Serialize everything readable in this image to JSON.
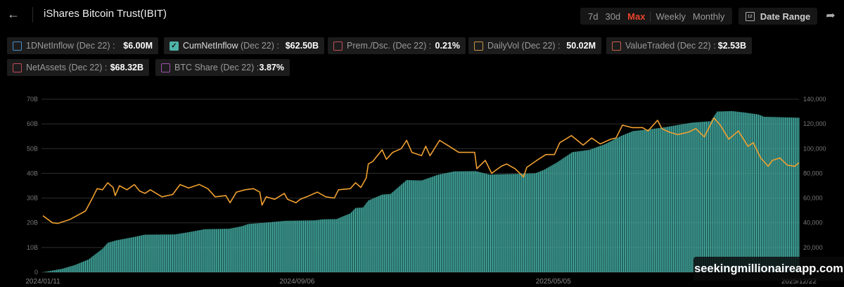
{
  "header": {
    "back_icon": "arrow-left-icon",
    "title": "iShares Bitcoin Trust(IBIT)",
    "ranges": [
      {
        "label": "7d",
        "active": false
      },
      {
        "label": "30d",
        "active": false
      },
      {
        "label": "Max",
        "active": true
      },
      {
        "label": "Weekly",
        "active": false
      },
      {
        "label": "Monthly",
        "active": false
      }
    ],
    "date_range_label": "Date Range",
    "date_range_icon": "calendar-icon",
    "calendar_day": "12",
    "share_icon": "share-icon",
    "accent": "#e8452c"
  },
  "metrics": [
    {
      "label": "1DNetInflow",
      "date": "(Dec 22) :",
      "value": "$6.00M",
      "color": "#4a8fc8",
      "checked": false
    },
    {
      "label": "CumNetInflow",
      "date": "(Dec 22) :",
      "value": "$62.50B",
      "color": "#4fb3a9",
      "checked": true
    },
    {
      "label": "Prem./Dsc.",
      "date": "(Dec 22) :",
      "value": "0.21%",
      "color": "#c0505a",
      "checked": false
    },
    {
      "label": "DailyVol",
      "date": "(Dec 22) :",
      "value": "50.02M",
      "color": "#c8924a",
      "checked": false
    },
    {
      "label": "ValueTraded",
      "date": "(Dec 22) :",
      "value": "$2.53B",
      "color": "#c8604a",
      "checked": false
    },
    {
      "label": "NetAssets",
      "date": "(Dec 22) :",
      "value": "$68.32B",
      "color": "#c04a5a",
      "checked": false
    },
    {
      "label": "BTC Share",
      "date": "(Dec 22) :",
      "value": "3.87%",
      "color": "#a050b0",
      "checked": false
    }
  ],
  "watermark": "seekingmillionaireapp.com",
  "chart_data": {
    "type": "bar+line",
    "grid": true,
    "x_ticks": [
      "2024/01/11",
      "2024/09/06",
      "2025/05/05",
      "2025/12/22"
    ],
    "x_range": [
      "2024-01-11",
      "2025-12-22"
    ],
    "left_axis": {
      "range": [
        0,
        70
      ],
      "ticks": [
        "0",
        "10B",
        "20B",
        "30B",
        "40B",
        "50B",
        "60B",
        "70B"
      ],
      "unit": "B"
    },
    "right_axis": {
      "range": [
        0,
        140000
      ],
      "ticks": [
        "",
        "20,000",
        "40,000",
        "60,000",
        "80,000",
        "100,000",
        "120,000",
        "140,000"
      ]
    },
    "series": [
      {
        "name": "CumNetInflow",
        "type": "bar",
        "axis": "left",
        "color": "#45b0a6",
        "points": [
          [
            "2024-01-11",
            0
          ],
          [
            "2024-01-29",
            1.4
          ],
          [
            "2024-02-10",
            2.9
          ],
          [
            "2024-02-23",
            5.2
          ],
          [
            "2024-03-07",
            9.5
          ],
          [
            "2024-03-12",
            11.9
          ],
          [
            "2024-03-20",
            12.9
          ],
          [
            "2024-04-06",
            14.3
          ],
          [
            "2024-04-16",
            15.2
          ],
          [
            "2024-05-14",
            15.3
          ],
          [
            "2024-05-27",
            16.2
          ],
          [
            "2024-06-11",
            17.4
          ],
          [
            "2024-07-04",
            17.6
          ],
          [
            "2024-07-16",
            18.6
          ],
          [
            "2024-07-22",
            19.5
          ],
          [
            "2024-08-11",
            20.2
          ],
          [
            "2024-08-26",
            20.8
          ],
          [
            "2024-09-23",
            21.0
          ],
          [
            "2024-09-30",
            21.4
          ],
          [
            "2024-10-13",
            21.5
          ],
          [
            "2024-10-26",
            23.8
          ],
          [
            "2024-10-31",
            26.0
          ],
          [
            "2024-11-07",
            26.2
          ],
          [
            "2024-11-12",
            29.0
          ],
          [
            "2024-11-25",
            31.4
          ],
          [
            "2024-12-03",
            31.7
          ],
          [
            "2024-12-10",
            34.3
          ],
          [
            "2024-12-18",
            37.3
          ],
          [
            "2025-01-01",
            37.1
          ],
          [
            "2025-01-17",
            39.5
          ],
          [
            "2025-02-01",
            40.8
          ],
          [
            "2025-02-21",
            40.9
          ],
          [
            "2025-03-06",
            39.5
          ],
          [
            "2025-04-18",
            40.0
          ],
          [
            "2025-04-26",
            41.4
          ],
          [
            "2025-05-08",
            44.3
          ],
          [
            "2025-05-23",
            48.6
          ],
          [
            "2025-06-08",
            49.5
          ],
          [
            "2025-06-23",
            51.9
          ],
          [
            "2025-07-08",
            55.2
          ],
          [
            "2025-07-19",
            57.1
          ],
          [
            "2025-08-05",
            57.9
          ],
          [
            "2025-08-17",
            58.6
          ],
          [
            "2025-09-12",
            60.5
          ],
          [
            "2025-09-30",
            61.1
          ],
          [
            "2025-10-06",
            65.0
          ],
          [
            "2025-10-20",
            65.2
          ],
          [
            "2025-11-01",
            64.6
          ],
          [
            "2025-11-14",
            63.8
          ],
          [
            "2025-11-19",
            62.9
          ],
          [
            "2025-12-22",
            62.5
          ]
        ]
      },
      {
        "type": "line",
        "axis": "right",
        "color": "#f0a030",
        "points": [
          [
            "2024-01-11",
            45700
          ],
          [
            "2024-01-20",
            40000
          ],
          [
            "2024-01-25",
            39500
          ],
          [
            "2024-02-05",
            42500
          ],
          [
            "2024-02-20",
            49500
          ],
          [
            "2024-02-26",
            59000
          ],
          [
            "2024-03-02",
            67600
          ],
          [
            "2024-03-07",
            66700
          ],
          [
            "2024-03-12",
            72400
          ],
          [
            "2024-03-17",
            68600
          ],
          [
            "2024-03-19",
            62000
          ],
          [
            "2024-03-23",
            70000
          ],
          [
            "2024-03-30",
            66700
          ],
          [
            "2024-04-06",
            70900
          ],
          [
            "2024-04-11",
            65700
          ],
          [
            "2024-04-16",
            63800
          ],
          [
            "2024-04-21",
            66700
          ],
          [
            "2024-05-02",
            61000
          ],
          [
            "2024-05-12",
            62900
          ],
          [
            "2024-05-19",
            70900
          ],
          [
            "2024-05-27",
            68200
          ],
          [
            "2024-06-06",
            71000
          ],
          [
            "2024-06-14",
            67600
          ],
          [
            "2024-06-21",
            61000
          ],
          [
            "2024-07-01",
            62000
          ],
          [
            "2024-07-05",
            56200
          ],
          [
            "2024-07-11",
            64800
          ],
          [
            "2024-07-19",
            66700
          ],
          [
            "2024-07-27",
            67600
          ],
          [
            "2024-08-02",
            64800
          ],
          [
            "2024-08-04",
            54300
          ],
          [
            "2024-08-08",
            61000
          ],
          [
            "2024-08-16",
            59000
          ],
          [
            "2024-08-25",
            63800
          ],
          [
            "2024-08-28",
            59000
          ],
          [
            "2024-09-05",
            56200
          ],
          [
            "2024-09-09",
            59000
          ],
          [
            "2024-09-15",
            61000
          ],
          [
            "2024-09-25",
            64800
          ],
          [
            "2024-10-03",
            61000
          ],
          [
            "2024-10-11",
            60000
          ],
          [
            "2024-10-15",
            66700
          ],
          [
            "2024-10-26",
            67600
          ],
          [
            "2024-10-31",
            72400
          ],
          [
            "2024-11-05",
            68600
          ],
          [
            "2024-11-10",
            76200
          ],
          [
            "2024-11-12",
            87600
          ],
          [
            "2024-11-16",
            89500
          ],
          [
            "2024-11-25",
            99000
          ],
          [
            "2024-11-29",
            91400
          ],
          [
            "2024-12-05",
            97000
          ],
          [
            "2024-12-13",
            100000
          ],
          [
            "2024-12-18",
            106700
          ],
          [
            "2024-12-23",
            97000
          ],
          [
            "2025-01-01",
            94300
          ],
          [
            "2025-01-05",
            101900
          ],
          [
            "2025-01-09",
            94300
          ],
          [
            "2025-01-18",
            106700
          ],
          [
            "2025-01-27",
            101900
          ],
          [
            "2025-02-05",
            97000
          ],
          [
            "2025-02-20",
            97000
          ],
          [
            "2025-02-22",
            83800
          ],
          [
            "2025-03-02",
            90500
          ],
          [
            "2025-03-08",
            80000
          ],
          [
            "2025-03-17",
            85700
          ],
          [
            "2025-03-22",
            87600
          ],
          [
            "2025-03-30",
            83800
          ],
          [
            "2025-04-07",
            77100
          ],
          [
            "2025-04-10",
            84800
          ],
          [
            "2025-04-21",
            91400
          ],
          [
            "2025-04-28",
            95200
          ],
          [
            "2025-05-06",
            95200
          ],
          [
            "2025-05-11",
            104800
          ],
          [
            "2025-05-22",
            110500
          ],
          [
            "2025-06-02",
            102900
          ],
          [
            "2025-06-10",
            108600
          ],
          [
            "2025-06-18",
            103800
          ],
          [
            "2025-06-28",
            107600
          ],
          [
            "2025-07-03",
            108600
          ],
          [
            "2025-07-09",
            119000
          ],
          [
            "2025-07-18",
            117000
          ],
          [
            "2025-07-28",
            117000
          ],
          [
            "2025-08-02",
            114300
          ],
          [
            "2025-08-11",
            122900
          ],
          [
            "2025-08-15",
            116200
          ],
          [
            "2025-08-22",
            113300
          ],
          [
            "2025-08-30",
            111400
          ],
          [
            "2025-09-09",
            113300
          ],
          [
            "2025-09-16",
            116200
          ],
          [
            "2025-09-24",
            109500
          ],
          [
            "2025-10-03",
            124800
          ],
          [
            "2025-10-09",
            119000
          ],
          [
            "2025-10-17",
            107600
          ],
          [
            "2025-10-26",
            114300
          ],
          [
            "2025-11-04",
            101900
          ],
          [
            "2025-11-09",
            104800
          ],
          [
            "2025-11-16",
            92400
          ],
          [
            "2025-11-23",
            85700
          ],
          [
            "2025-11-27",
            90500
          ],
          [
            "2025-12-04",
            92400
          ],
          [
            "2025-12-11",
            86700
          ],
          [
            "2025-12-18",
            85700
          ],
          [
            "2025-12-22",
            88600
          ]
        ]
      }
    ]
  }
}
